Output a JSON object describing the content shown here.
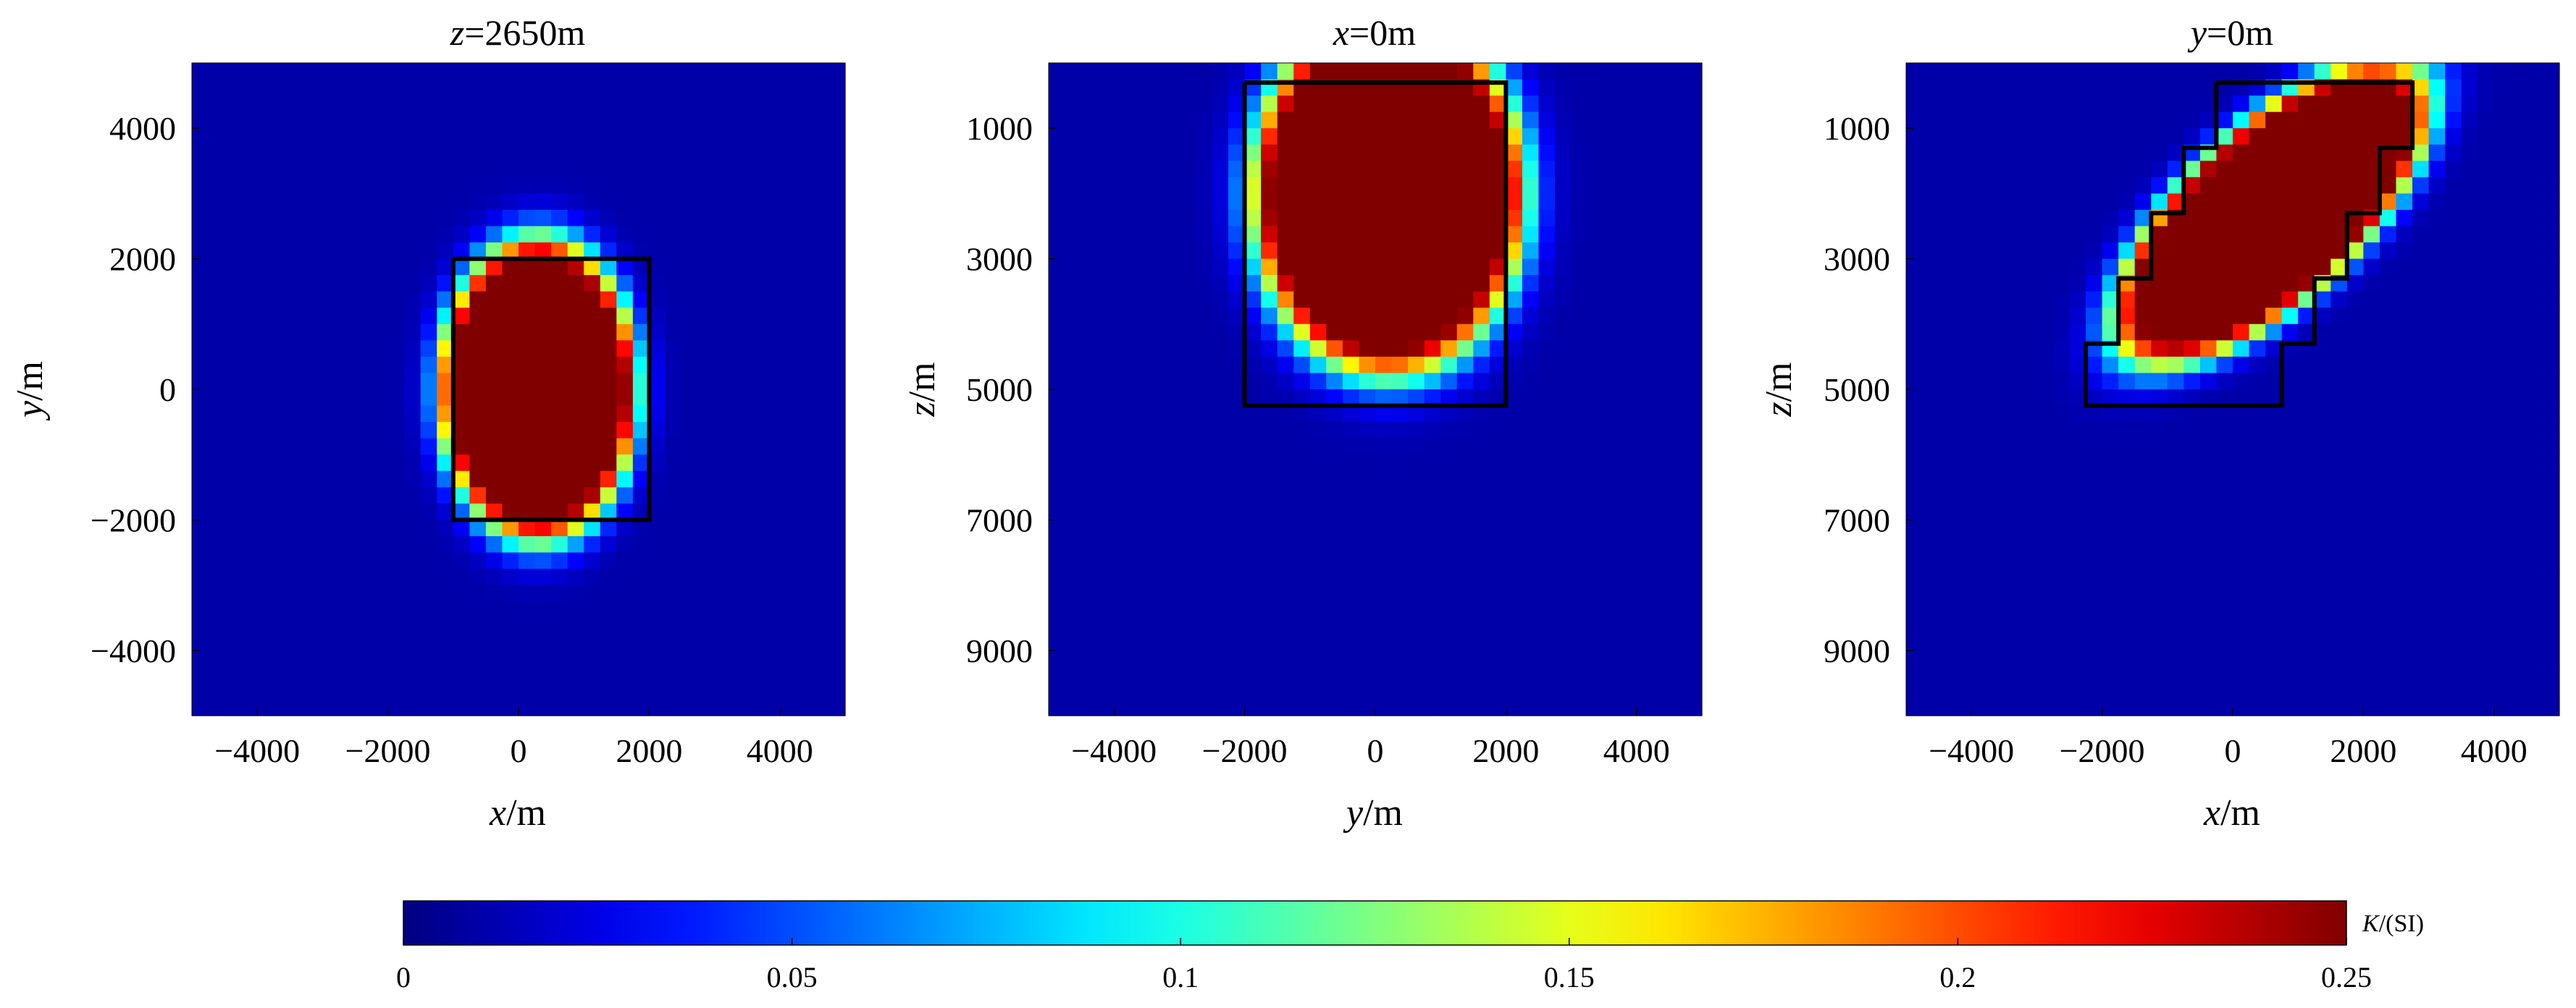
{
  "chart_data": [
    {
      "type": "heatmap",
      "title": "z=2650m",
      "title_var": "z",
      "title_rest": "=2650m",
      "xlabel": "x/m",
      "xlabel_var": "x",
      "xlabel_unit": "/m",
      "ylabel": "y/m",
      "ylabel_var": "y",
      "ylabel_unit": "/m",
      "xlim": [
        -5000,
        5000
      ],
      "ylim": [
        -5000,
        5000
      ],
      "y_reversed": false,
      "xticks": [
        -4000,
        -2000,
        0,
        2000,
        4000
      ],
      "xtick_labels": [
        "−4000",
        "−2000",
        "0",
        "2000",
        "4000"
      ],
      "yticks": [
        4000,
        2000,
        0,
        -2000,
        -4000
      ],
      "ytick_labels": [
        "4000",
        "2000",
        "0",
        "−2000",
        "−4000"
      ],
      "background_value": 0.01,
      "anomaly": {
        "shape": "ellipse",
        "center": [
          300,
          0
        ],
        "semi_axes": [
          1300,
          2000
        ],
        "exponent": 4,
        "peak": 0.25
      },
      "model_outline": [
        [
          -1000,
          2000
        ],
        [
          2000,
          2000
        ],
        [
          2000,
          -2000
        ],
        [
          -1000,
          -2000
        ],
        [
          -1000,
          2000
        ]
      ]
    },
    {
      "type": "heatmap",
      "title": "x=0m",
      "title_var": "x",
      "title_rest": "=0m",
      "xlabel": "y/m",
      "xlabel_var": "y",
      "xlabel_unit": "/m",
      "ylabel": "z/m",
      "ylabel_var": "z",
      "ylabel_unit": "/m",
      "xlim": [
        -5000,
        5000
      ],
      "ylim": [
        0,
        10000
      ],
      "y_reversed": true,
      "xticks": [
        -4000,
        -2000,
        0,
        2000,
        4000
      ],
      "xtick_labels": [
        "−4000",
        "−2000",
        "0",
        "2000",
        "4000"
      ],
      "yticks": [
        1000,
        3000,
        5000,
        7000,
        9000
      ],
      "ytick_labels": [
        "1000",
        "3000",
        "5000",
        "7000",
        "9000"
      ],
      "background_value": 0.01,
      "anomaly": {
        "shape": "ellipse",
        "center": [
          200,
          2000
        ],
        "semi_axes": [
          1800,
          2400
        ],
        "exponent": 3,
        "peak": 0.25
      },
      "model_outline": [
        [
          -2000,
          300
        ],
        [
          2000,
          300
        ],
        [
          2000,
          5250
        ],
        [
          -2000,
          5250
        ],
        [
          -2000,
          300
        ]
      ]
    },
    {
      "type": "heatmap",
      "title": "y=0m",
      "title_var": "y",
      "title_rest": "=0m",
      "xlabel": "x/m",
      "xlabel_var": "x",
      "xlabel_unit": "/m",
      "ylabel": "z/m",
      "ylabel_var": "z",
      "ylabel_unit": "/m",
      "xlim": [
        -5000,
        5000
      ],
      "ylim": [
        0,
        10000
      ],
      "y_reversed": true,
      "xticks": [
        -4000,
        -2000,
        0,
        2000,
        4000
      ],
      "xtick_labels": [
        "−4000",
        "−2000",
        "0",
        "2000",
        "4000"
      ],
      "yticks": [
        1000,
        3000,
        5000,
        7000,
        9000
      ],
      "ytick_labels": [
        "1000",
        "3000",
        "5000",
        "7000",
        "9000"
      ],
      "background_value": 0.01,
      "anomaly": {
        "shape": "sheared-ellipse",
        "center": [
          600,
          2300
        ],
        "semi_axes": [
          1500,
          2000
        ],
        "shear": -0.72,
        "exponent": 3,
        "peak": 0.25
      },
      "model_outline": [
        [
          -250,
          300
        ],
        [
          2750,
          300
        ],
        [
          2750,
          1300
        ],
        [
          2250,
          1300
        ],
        [
          2250,
          2300
        ],
        [
          1750,
          2300
        ],
        [
          1750,
          3300
        ],
        [
          1250,
          3300
        ],
        [
          1250,
          4300
        ],
        [
          750,
          4300
        ],
        [
          750,
          5250
        ],
        [
          -2250,
          5250
        ],
        [
          -2250,
          4300
        ],
        [
          -1750,
          4300
        ],
        [
          -1750,
          3300
        ],
        [
          -1250,
          3300
        ],
        [
          -1250,
          2300
        ],
        [
          -750,
          2300
        ],
        [
          -750,
          1300
        ],
        [
          -250,
          1300
        ],
        [
          -250,
          300
        ]
      ]
    }
  ],
  "colorbar": {
    "label": "K/(SI)",
    "label_var": "K",
    "label_unit": "/(SI)",
    "range": [
      0,
      0.25
    ],
    "ticks": [
      0,
      0.05,
      0.1,
      0.15,
      0.2,
      0.25
    ],
    "tick_labels": [
      "0",
      "0.05",
      "0.1",
      "0.15",
      "0.2",
      "0.25"
    ],
    "colormap": "jet"
  }
}
